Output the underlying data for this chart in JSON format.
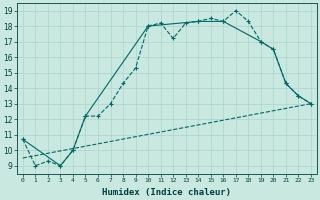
{
  "xlabel": "Humidex (Indice chaleur)",
  "background_color": "#c8e8e0",
  "grid_color": "#b0d8d0",
  "line_color": "#006868",
  "xlim": [
    -0.5,
    23.5
  ],
  "ylim": [
    8.5,
    19.5
  ],
  "xticks": [
    0,
    1,
    2,
    3,
    4,
    5,
    6,
    7,
    8,
    9,
    10,
    11,
    12,
    13,
    14,
    15,
    16,
    17,
    18,
    19,
    20,
    21,
    22,
    23
  ],
  "yticks": [
    9,
    10,
    11,
    12,
    13,
    14,
    15,
    16,
    17,
    18,
    19
  ],
  "line1_x": [
    0,
    1,
    2,
    3,
    4,
    5,
    6,
    7,
    8,
    9,
    10,
    11,
    12,
    13,
    14,
    15,
    16,
    17,
    18,
    19,
    20,
    21,
    22,
    23
  ],
  "line1_y": [
    10.7,
    9.0,
    9.3,
    9.0,
    10.0,
    12.2,
    12.2,
    13.0,
    14.3,
    15.3,
    18.0,
    18.2,
    17.2,
    18.2,
    18.3,
    18.5,
    18.3,
    19.0,
    18.3,
    17.0,
    16.5,
    14.3,
    13.5,
    13.0
  ],
  "line2_x": [
    0,
    3,
    4,
    5,
    10,
    14,
    16,
    19,
    20,
    21,
    22,
    23
  ],
  "line2_y": [
    10.7,
    9.0,
    10.0,
    12.2,
    18.0,
    18.3,
    18.3,
    17.0,
    16.5,
    14.3,
    13.5,
    13.0
  ],
  "line3_x": [
    0,
    23
  ],
  "line3_y": [
    9.5,
    13.0
  ]
}
